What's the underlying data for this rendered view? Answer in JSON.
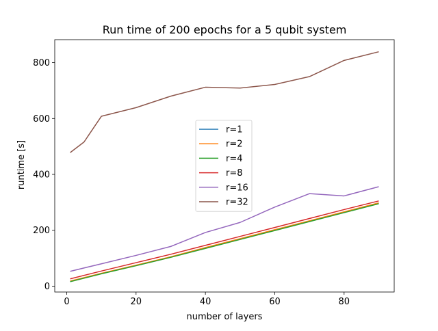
{
  "chart_data": {
    "type": "line",
    "title": "Run time of 200 epochs for a 5 qubit system",
    "xlabel": "number of layers",
    "ylabel": "runtime [s]",
    "xlim": [
      -3.45,
      94.45
    ],
    "ylim": [
      -21.1,
      882.3
    ],
    "xticks": [
      0,
      20,
      40,
      60,
      80
    ],
    "yticks": [
      0,
      200,
      400,
      600,
      800
    ],
    "grid": false,
    "legend_position": "center",
    "series": [
      {
        "name": "r=1",
        "color": "#1f77b4",
        "x": [
          1,
          10,
          20,
          30,
          40,
          50,
          60,
          70,
          80,
          90
        ],
        "values": [
          17,
          45,
          74,
          104,
          136,
          168,
          200,
          232,
          264,
          296
        ]
      },
      {
        "name": "r=2",
        "color": "#ff7f0e",
        "x": [
          1,
          10,
          20,
          30,
          40,
          50,
          60,
          70,
          80,
          90
        ],
        "values": [
          18,
          46,
          75,
          105,
          138,
          170,
          202,
          234,
          266,
          298
        ]
      },
      {
        "name": "r=4",
        "color": "#2ca02c",
        "x": [
          1,
          10,
          20,
          30,
          40,
          50,
          60,
          70,
          80,
          90
        ],
        "values": [
          16,
          44,
          73,
          103,
          135,
          167,
          199,
          231,
          263,
          295
        ]
      },
      {
        "name": "r=8",
        "color": "#d62728",
        "x": [
          1,
          10,
          20,
          30,
          40,
          50,
          60,
          70,
          80,
          90
        ],
        "values": [
          26,
          54,
          84,
          114,
          146,
          178,
          210,
          242,
          274,
          305
        ]
      },
      {
        "name": "r=16",
        "color": "#9467bd",
        "x": [
          1,
          10,
          20,
          30,
          40,
          50,
          60,
          70,
          80,
          90
        ],
        "values": [
          53,
          80,
          110,
          142,
          192,
          228,
          283,
          331,
          323,
          356
        ]
      },
      {
        "name": "r=32",
        "color": "#8c564b",
        "x": [
          1,
          5,
          10,
          20,
          30,
          40,
          50,
          60,
          70,
          80,
          90
        ],
        "values": [
          478,
          516,
          608,
          639,
          680,
          712,
          709,
          722,
          750,
          808,
          839
        ]
      }
    ]
  }
}
